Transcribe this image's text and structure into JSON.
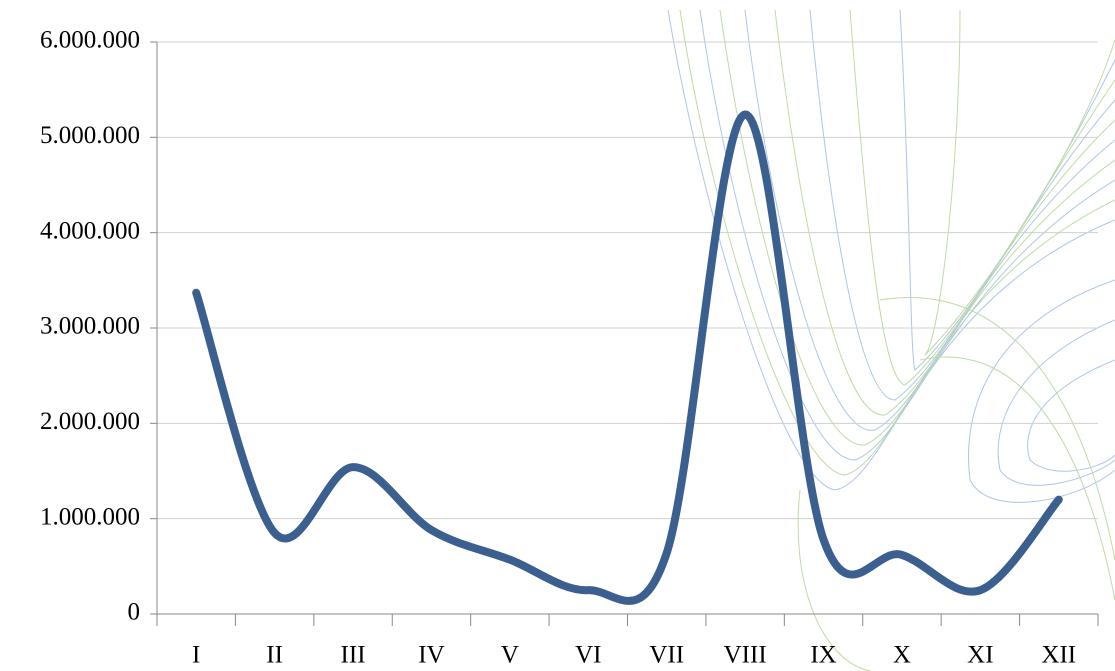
{
  "chart_data": {
    "type": "line",
    "categories": [
      "I",
      "II",
      "III",
      "IV",
      "V",
      "VI",
      "VII",
      "VIII",
      "IX",
      "X",
      "XI",
      "XII"
    ],
    "series": [
      {
        "color": "#3b5f8f",
        "values": [
          3370000,
          850000,
          1540000,
          880000,
          570000,
          250000,
          640000,
          5240000,
          780000,
          620000,
          250000,
          1200000
        ]
      }
    ],
    "ylim": [
      0,
      6000000
    ],
    "yticks": [
      0,
      {
        "value": 1000000,
        "label": "1.000.000"
      },
      {
        "value": 2000000,
        "label": "2.000.000"
      },
      {
        "value": 3000000,
        "label": "3.000.000"
      },
      {
        "value": 4000000,
        "label": "4.000.000"
      },
      {
        "value": 5000000,
        "label": "5.000.000"
      },
      {
        "value": 6000000,
        "label": "6.000.000"
      }
    ],
    "grid": true
  }
}
